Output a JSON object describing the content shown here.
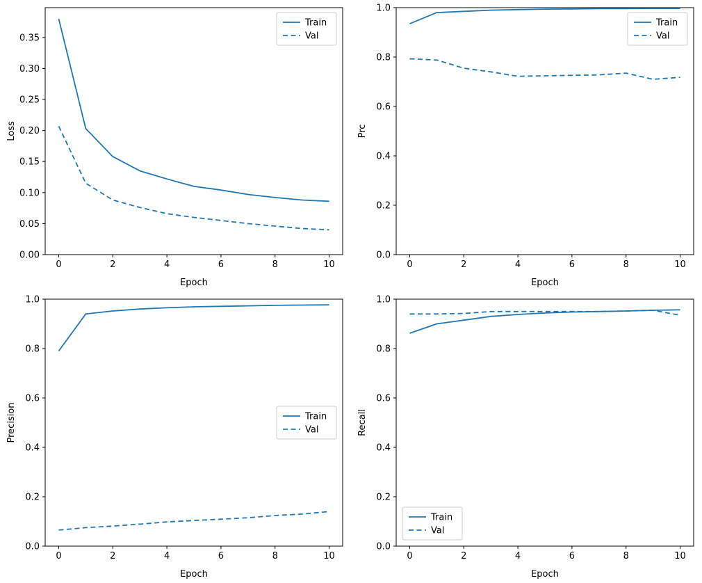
{
  "figure": {
    "background": "#ffffff",
    "line_color": "#1f77b4",
    "legend_border_color": "#cccccc",
    "axis_color": "#000000"
  },
  "chart_data": [
    {
      "type": "line",
      "title": "",
      "xlabel": "Epoch",
      "ylabel": "Loss",
      "x": [
        0,
        1,
        2,
        3,
        4,
        5,
        6,
        7,
        8,
        9,
        10
      ],
      "xlim": [
        -0.5,
        10.5
      ],
      "ylim": [
        0,
        0.398
      ],
      "xticks": {
        "values": [
          0,
          2,
          4,
          6,
          8,
          10
        ],
        "labels": [
          "0",
          "2",
          "4",
          "6",
          "8",
          "10"
        ]
      },
      "yticks": {
        "values": [
          0,
          0.05,
          0.1,
          0.15,
          0.2,
          0.25,
          0.3,
          0.35
        ],
        "labels": [
          "0.00",
          "0.05",
          "0.10",
          "0.15",
          "0.20",
          "0.25",
          "0.30",
          "0.35"
        ]
      },
      "grid": false,
      "legend_position": "upper right",
      "series": [
        {
          "name": "Train",
          "style": "solid",
          "values": [
            0.38,
            0.203,
            0.158,
            0.135,
            0.122,
            0.11,
            0.104,
            0.097,
            0.092,
            0.088,
            0.086
          ]
        },
        {
          "name": "Val",
          "style": "dashed",
          "values": [
            0.207,
            0.115,
            0.088,
            0.076,
            0.066,
            0.06,
            0.055,
            0.05,
            0.046,
            0.042,
            0.04
          ]
        }
      ]
    },
    {
      "type": "line",
      "title": "",
      "xlabel": "Epoch",
      "ylabel": "Prc",
      "x": [
        0,
        1,
        2,
        3,
        4,
        5,
        6,
        7,
        8,
        9,
        10
      ],
      "xlim": [
        -0.5,
        10.5
      ],
      "ylim": [
        0,
        1.0
      ],
      "xticks": {
        "values": [
          0,
          2,
          4,
          6,
          8,
          10
        ],
        "labels": [
          "0",
          "2",
          "4",
          "6",
          "8",
          "10"
        ]
      },
      "yticks": {
        "values": [
          0,
          0.2,
          0.4,
          0.6,
          0.8,
          1.0
        ],
        "labels": [
          "0.0",
          "0.2",
          "0.4",
          "0.6",
          "0.8",
          "1.0"
        ]
      },
      "grid": false,
      "legend_position": "upper right",
      "series": [
        {
          "name": "Train",
          "style": "solid",
          "values": [
            0.935,
            0.98,
            0.985,
            0.99,
            0.992,
            0.994,
            0.995,
            0.996,
            0.996,
            0.997,
            0.997
          ]
        },
        {
          "name": "Val",
          "style": "dashed",
          "values": [
            0.793,
            0.788,
            0.755,
            0.74,
            0.722,
            0.724,
            0.726,
            0.728,
            0.735,
            0.71,
            0.718
          ]
        }
      ]
    },
    {
      "type": "line",
      "title": "",
      "xlabel": "Epoch",
      "ylabel": "Precision",
      "x": [
        0,
        1,
        2,
        3,
        4,
        5,
        6,
        7,
        8,
        9,
        10
      ],
      "xlim": [
        -0.5,
        10.5
      ],
      "ylim": [
        0,
        1.0
      ],
      "xticks": {
        "values": [
          0,
          2,
          4,
          6,
          8,
          10
        ],
        "labels": [
          "0",
          "2",
          "4",
          "6",
          "8",
          "10"
        ]
      },
      "yticks": {
        "values": [
          0,
          0.2,
          0.4,
          0.6,
          0.8,
          1.0
        ],
        "labels": [
          "0.0",
          "0.2",
          "0.4",
          "0.6",
          "0.8",
          "1.0"
        ]
      },
      "grid": false,
      "legend_position": "center right",
      "series": [
        {
          "name": "Train",
          "style": "solid",
          "values": [
            0.79,
            0.94,
            0.952,
            0.96,
            0.965,
            0.969,
            0.971,
            0.973,
            0.975,
            0.976,
            0.977
          ]
        },
        {
          "name": "Val",
          "style": "dashed",
          "values": [
            0.065,
            0.075,
            0.081,
            0.089,
            0.098,
            0.104,
            0.109,
            0.115,
            0.124,
            0.13,
            0.14
          ]
        }
      ]
    },
    {
      "type": "line",
      "title": "",
      "xlabel": "Epoch",
      "ylabel": "Recall",
      "x": [
        0,
        1,
        2,
        3,
        4,
        5,
        6,
        7,
        8,
        9,
        10
      ],
      "xlim": [
        -0.5,
        10.5
      ],
      "ylim": [
        0,
        1.0
      ],
      "xticks": {
        "values": [
          0,
          2,
          4,
          6,
          8,
          10
        ],
        "labels": [
          "0",
          "2",
          "4",
          "6",
          "8",
          "10"
        ]
      },
      "yticks": {
        "values": [
          0,
          0.2,
          0.4,
          0.6,
          0.8,
          1.0
        ],
        "labels": [
          "0.0",
          "0.2",
          "0.4",
          "0.6",
          "0.8",
          "1.0"
        ]
      },
      "grid": false,
      "legend_position": "lower left",
      "series": [
        {
          "name": "Train",
          "style": "solid",
          "values": [
            0.862,
            0.9,
            0.915,
            0.93,
            0.938,
            0.944,
            0.948,
            0.95,
            0.952,
            0.955,
            0.957
          ]
        },
        {
          "name": "Val",
          "style": "dashed",
          "values": [
            0.94,
            0.94,
            0.942,
            0.95,
            0.95,
            0.95,
            0.95,
            0.95,
            0.952,
            0.955,
            0.935
          ]
        }
      ]
    }
  ]
}
